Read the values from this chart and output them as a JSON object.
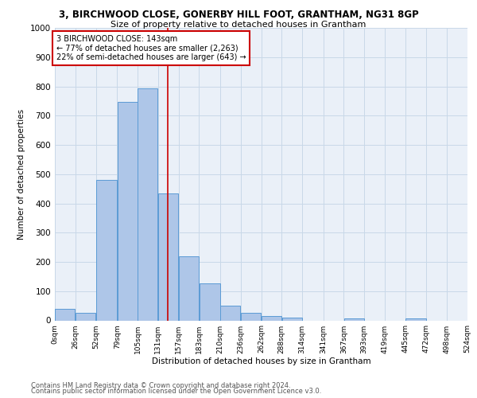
{
  "title1": "3, BIRCHWOOD CLOSE, GONERBY HILL FOOT, GRANTHAM, NG31 8GP",
  "title2": "Size of property relative to detached houses in Grantham",
  "xlabel": "Distribution of detached houses by size in Grantham",
  "ylabel": "Number of detached properties",
  "footnote1": "Contains HM Land Registry data © Crown copyright and database right 2024.",
  "footnote2": "Contains public sector information licensed under the Open Government Licence v3.0.",
  "bar_left_edges": [
    0,
    26,
    52,
    79,
    105,
    131,
    157,
    183,
    210,
    236,
    262,
    288,
    314,
    341,
    367,
    393,
    419,
    445,
    472,
    498
  ],
  "bar_heights": [
    40,
    25,
    480,
    747,
    793,
    435,
    220,
    127,
    50,
    27,
    15,
    10,
    0,
    0,
    8,
    0,
    0,
    8,
    0,
    0
  ],
  "bar_color": "#aec6e8",
  "bar_edge_color": "#5b9bd5",
  "xtick_labels": [
    "0sqm",
    "26sqm",
    "52sqm",
    "79sqm",
    "105sqm",
    "131sqm",
    "157sqm",
    "183sqm",
    "210sqm",
    "236sqm",
    "262sqm",
    "288sqm",
    "314sqm",
    "341sqm",
    "367sqm",
    "393sqm",
    "419sqm",
    "445sqm",
    "472sqm",
    "498sqm",
    "524sqm"
  ],
  "xtick_positions": [
    0,
    26,
    52,
    79,
    105,
    131,
    157,
    183,
    210,
    236,
    262,
    288,
    314,
    341,
    367,
    393,
    419,
    445,
    472,
    498,
    524
  ],
  "ylim": [
    0,
    1000
  ],
  "xlim": [
    0,
    524
  ],
  "yticks": [
    0,
    100,
    200,
    300,
    400,
    500,
    600,
    700,
    800,
    900,
    1000
  ],
  "property_line_x": 143,
  "annotation_title": "3 BIRCHWOOD CLOSE: 143sqm",
  "annotation_line1": "← 77% of detached houses are smaller (2,263)",
  "annotation_line2": "22% of semi-detached houses are larger (643) →",
  "annotation_box_color": "#ffffff",
  "annotation_box_edge_color": "#cc0000",
  "grid_color": "#c8d8e8",
  "bg_color": "#eaf0f8",
  "title_fontsize": 8.5,
  "subtitle_fontsize": 8.0,
  "ylabel_fontsize": 7.5,
  "xlabel_fontsize": 7.5,
  "ytick_fontsize": 7.5,
  "xtick_fontsize": 6.5,
  "footnote_fontsize": 6.0,
  "annot_fontsize": 7.0
}
